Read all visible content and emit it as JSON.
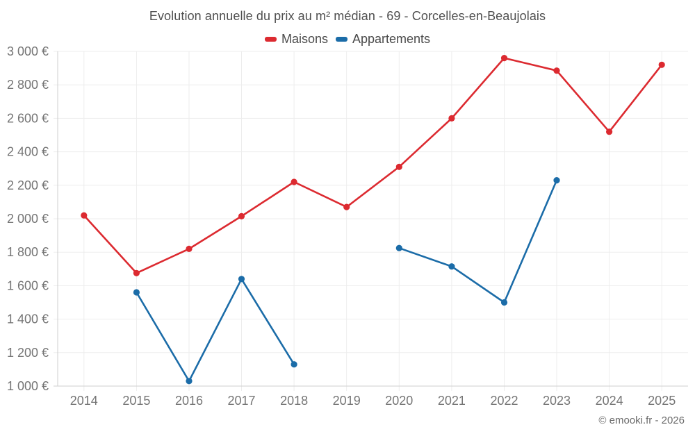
{
  "footer": {
    "watermark": "© emooki.fr - 2026"
  },
  "chart_data": {
    "type": "line",
    "title": "Evolution annuelle du prix au m² médian - 69 - Corcelles-en-Beaujolais",
    "categories": [
      "2014",
      "2015",
      "2016",
      "2017",
      "2018",
      "2019",
      "2020",
      "2021",
      "2022",
      "2023",
      "2024",
      "2025"
    ],
    "series": [
      {
        "name": "Maisons",
        "color": "#dc2a30",
        "values": [
          2020,
          1675,
          1820,
          2015,
          2220,
          2070,
          2310,
          2600,
          2960,
          2885,
          2520,
          2920
        ]
      },
      {
        "name": "Appartements",
        "color": "#1b6ca8",
        "values": [
          null,
          1560,
          1030,
          1640,
          1130,
          null,
          1825,
          1715,
          1500,
          2230,
          null,
          null
        ]
      }
    ],
    "xlabel": "",
    "ylabel": "",
    "ylim": [
      1000,
      3000
    ],
    "ytick_step": 200,
    "ytick_values": [
      1000,
      1200,
      1400,
      1600,
      1800,
      2000,
      2200,
      2400,
      2600,
      2800,
      3000
    ],
    "ytick_labels": [
      "1 000 €",
      "1 200 €",
      "1 400 €",
      "1 600 €",
      "1 800 €",
      "2 000 €",
      "2 200 €",
      "2 400 €",
      "2 600 €",
      "2 800 €",
      "3 000 €"
    ],
    "grid": true,
    "legend_position": "top",
    "point_style": "filled-circle",
    "colors": {
      "grid": "#ededed",
      "axis": "#cfcfcf",
      "tick_text": "#757575",
      "title_text": "#4f4f4f",
      "legend_text": "#4a4a4a",
      "watermark_text": "#6b6b6b"
    }
  }
}
